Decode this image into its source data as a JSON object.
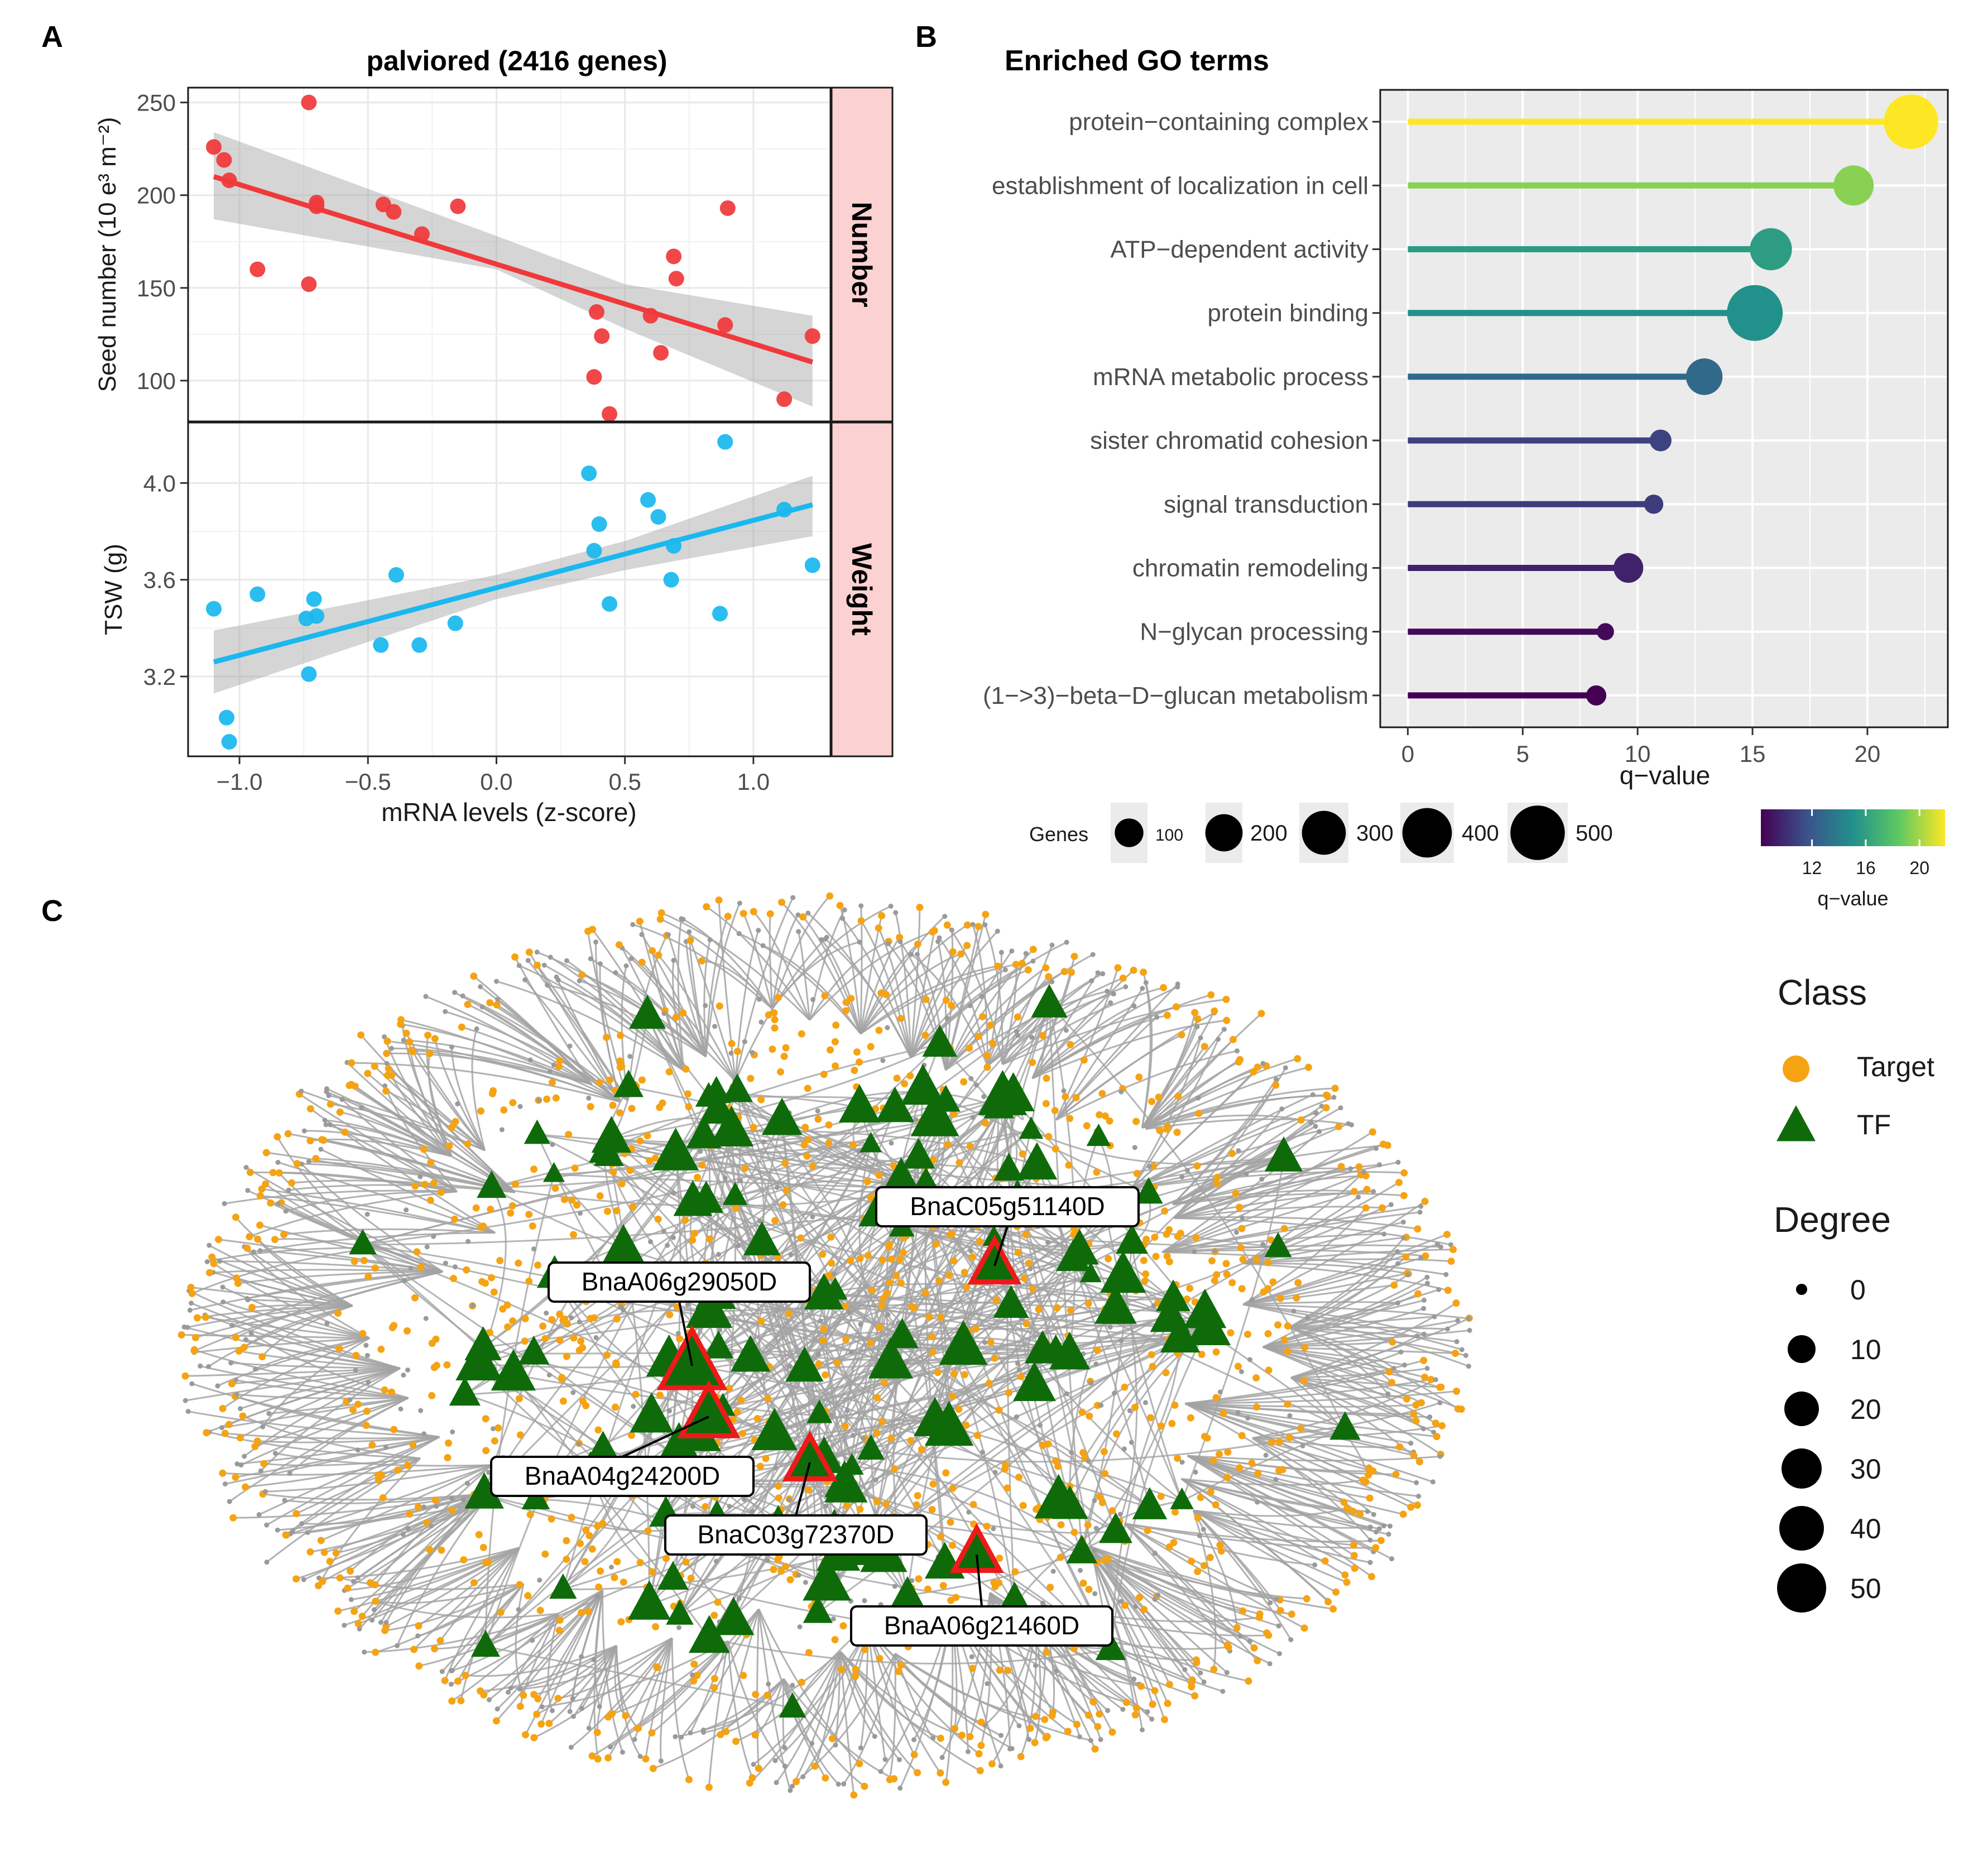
{
  "panels": {
    "a": "A",
    "b": "B",
    "c": "C"
  },
  "chart_data": [
    {
      "type": "scatter",
      "panel": "A",
      "title": "palviored (2416 genes)",
      "xlabel": "mRNA levels (z-score)",
      "xlim": [
        -1.2,
        1.3
      ],
      "xticks": [
        -1.0,
        -0.5,
        0.0,
        0.5,
        1.0
      ],
      "xtick_labels": [
        "−1.0",
        "−0.5",
        "0.0",
        "0.5",
        "1.0"
      ],
      "grid": true,
      "facets": [
        {
          "strip": "Number",
          "ylabel": "Seed number (10 e³ m⁻²)",
          "ylim": [
            78,
            258
          ],
          "yticks": [
            100,
            150,
            200,
            250
          ],
          "ytick_labels": [
            "100",
            "150",
            "200",
            "250"
          ],
          "color": "#f0393b",
          "points": [
            [
              -1.1,
              226
            ],
            [
              -1.06,
              219
            ],
            [
              -1.04,
              208
            ],
            [
              -0.93,
              160
            ],
            [
              -0.73,
              250
            ],
            [
              -0.73,
              152
            ],
            [
              -0.7,
              196
            ],
            [
              -0.7,
              194
            ],
            [
              -0.44,
              195
            ],
            [
              -0.4,
              191
            ],
            [
              -0.29,
              179
            ],
            [
              -0.15,
              194
            ],
            [
              0.38,
              102
            ],
            [
              0.39,
              137
            ],
            [
              0.41,
              124
            ],
            [
              0.44,
              82
            ],
            [
              0.6,
              135
            ],
            [
              0.64,
              115
            ],
            [
              0.69,
              167
            ],
            [
              0.7,
              155
            ],
            [
              0.89,
              130
            ],
            [
              0.9,
              193
            ],
            [
              1.12,
              90
            ],
            [
              1.23,
              124
            ]
          ],
          "fit": [
            [
              -1.1,
              210
            ],
            [
              1.23,
              110
            ]
          ],
          "ci_upper": [
            [
              -1.1,
              234
            ],
            [
              0.0,
              178
            ],
            [
              0.5,
              152
            ],
            [
              1.23,
              135
            ]
          ],
          "ci_lower": [
            [
              -1.1,
              187
            ],
            [
              0.0,
              160
            ],
            [
              0.5,
              128
            ],
            [
              1.23,
              86
            ]
          ]
        },
        {
          "strip": "Weight",
          "ylabel": "TSW (g)",
          "ylim": [
            2.87,
            4.25
          ],
          "yticks": [
            3.2,
            3.6,
            4.0
          ],
          "ytick_labels": [
            "3.2",
            "3.6",
            "4.0"
          ],
          "color": "#1ab8ee",
          "points": [
            [
              -1.1,
              3.48
            ],
            [
              -1.05,
              3.03
            ],
            [
              -1.04,
              2.93
            ],
            [
              -0.93,
              3.54
            ],
            [
              -0.74,
              3.44
            ],
            [
              -0.73,
              3.21
            ],
            [
              -0.71,
              3.52
            ],
            [
              -0.7,
              3.45
            ],
            [
              -0.45,
              3.33
            ],
            [
              -0.39,
              3.62
            ],
            [
              -0.3,
              3.33
            ],
            [
              -0.16,
              3.42
            ],
            [
              0.36,
              4.04
            ],
            [
              0.38,
              3.72
            ],
            [
              0.4,
              3.83
            ],
            [
              0.44,
              3.5
            ],
            [
              0.59,
              3.93
            ],
            [
              0.63,
              3.86
            ],
            [
              0.68,
              3.6
            ],
            [
              0.69,
              3.74
            ],
            [
              0.87,
              3.46
            ],
            [
              0.89,
              4.17
            ],
            [
              1.12,
              3.89
            ],
            [
              1.23,
              3.66
            ]
          ],
          "fit": [
            [
              -1.1,
              3.26
            ],
            [
              1.23,
              3.91
            ]
          ],
          "ci_upper": [
            [
              -1.1,
              3.39
            ],
            [
              0.0,
              3.62
            ],
            [
              0.5,
              3.76
            ],
            [
              1.23,
              4.03
            ]
          ],
          "ci_lower": [
            [
              -1.1,
              3.13
            ],
            [
              0.0,
              3.52
            ],
            [
              0.5,
              3.64
            ],
            [
              1.23,
              3.78
            ]
          ]
        }
      ]
    },
    {
      "type": "lollipop",
      "panel": "B",
      "title": "Enriched GO terms",
      "xlabel": "q−value",
      "xlim": [
        -1.2,
        23.5
      ],
      "xticks": [
        0,
        5,
        10,
        15,
        20
      ],
      "xtick_labels": [
        "0",
        "5",
        "10",
        "15",
        "20"
      ],
      "grid": true,
      "categories": [
        "protein−containing complex",
        "establishment of localization in cell",
        "ATP−dependent activity",
        "protein binding",
        "mRNA metabolic process",
        "sister chromatid cohesion",
        "signal transduction",
        "chromatin remodeling",
        "N−glycan processing",
        "(1−>3)−beta−D−glucan metabolism"
      ],
      "values": [
        21.9,
        19.4,
        15.8,
        15.1,
        12.9,
        11.0,
        10.7,
        9.6,
        8.6,
        8.2
      ],
      "genes": [
        500,
        240,
        270,
        530,
        190,
        45,
        30,
        110,
        20,
        35
      ],
      "size_legend": {
        "title": "Genes",
        "values": [
          100,
          200,
          300,
          400,
          500
        ],
        "labels": [
          "100",
          "200",
          "300",
          "400",
          "500"
        ]
      },
      "color_legend": {
        "title": "q−value",
        "range": [
          8.2,
          21.9
        ],
        "ticks": [
          12,
          16,
          20
        ],
        "tick_labels": [
          "12",
          "16",
          "20"
        ],
        "palette": "viridis"
      }
    },
    {
      "type": "network",
      "panel": "C",
      "labeled_tfs": [
        "BnaC05g51140D",
        "BnaA06g29050D",
        "BnaA04g24200D",
        "BnaC03g72370D",
        "BnaA06g21460D"
      ],
      "legend": {
        "class_title": "Class",
        "classes": [
          {
            "name": "Target",
            "color": "#f5a313",
            "shape": "circle"
          },
          {
            "name": "TF",
            "color": "#0f6b0a",
            "shape": "triangle"
          }
        ],
        "degree_title": "Degree",
        "degrees": [
          0,
          10,
          20,
          30,
          40,
          50
        ],
        "degree_labels": [
          "0",
          "10",
          "20",
          "30",
          "40",
          "50"
        ]
      },
      "edge_color": "#a3a3a3",
      "highlight_color": "#ee1a1a"
    }
  ]
}
